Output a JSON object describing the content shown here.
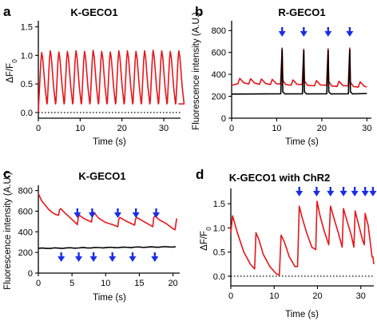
{
  "colors": {
    "red_trace": "#e8151b",
    "black_trace": "#000000",
    "arrow": "#1a2ee6"
  },
  "chart_data": [
    {
      "panel": "a",
      "type": "line",
      "title": "K-GECO1",
      "xlabel": "Time (s)",
      "ylabel_main": "ΔF/F",
      "ylabel_sub": "0",
      "xlim": [
        0,
        34
      ],
      "ylim": [
        -0.1,
        1.55
      ],
      "xticks": [
        0,
        10,
        20,
        30
      ],
      "yticks": [
        0.0,
        0.5,
        1.0,
        1.5
      ],
      "ytick_labels": [
        "0.0",
        "0.5",
        "1.0",
        "1.5"
      ],
      "dotted_baseline": 0,
      "series": [
        {
          "color": "red",
          "kind": "periodic",
          "peak_times": [
            0.8,
            2.85,
            4.9,
            6.95,
            9.0,
            11.05,
            13.1,
            15.15,
            17.2,
            19.25,
            21.3,
            23.35,
            25.4,
            27.45,
            29.5,
            31.55,
            33.6
          ],
          "peak_values": [
            1.05,
            1.08,
            1.06,
            1.07,
            1.08,
            1.07,
            1.09,
            1.07,
            1.06,
            1.08,
            1.08,
            1.07,
            1.08,
            1.09,
            1.08,
            1.07,
            1.08
          ],
          "trough": 0.15,
          "start": 0.0,
          "end": 0.15
        }
      ]
    },
    {
      "panel": "b",
      "type": "line",
      "title": "R-GECO1",
      "xlabel": "Time (s)",
      "ylabel": "Fluorescence intensity (A.U.)",
      "xlim": [
        0,
        31
      ],
      "ylim": [
        0,
        860
      ],
      "xticks": [
        0,
        10,
        20,
        30
      ],
      "yticks": [
        0,
        200,
        400,
        600,
        800
      ],
      "ytick_labels": [
        "0",
        "200",
        "400",
        "600",
        "800"
      ],
      "arrows_top_x": [
        11.2,
        16.0,
        21.4,
        26.2
      ],
      "series": [
        {
          "color": "red",
          "kind": "spiky",
          "baseline_start": 320,
          "baseline_end": 285,
          "start_value": 300,
          "small_peak_times": [
            1.8,
            4.2,
            6.6,
            9.0,
            13.6,
            18.8,
            23.8,
            28.5
          ],
          "small_peak_height": 45,
          "big_peak_times": [
            11.2,
            16.0,
            21.4,
            26.2
          ],
          "big_peak_values": [
            640,
            630,
            635,
            640
          ]
        },
        {
          "color": "black",
          "kind": "baseline",
          "start": 220,
          "end": 225,
          "dip_at": [
            11.2,
            16.0,
            21.4,
            26.2
          ],
          "big_peak_values": [
            630,
            620,
            620,
            625
          ]
        }
      ]
    },
    {
      "panel": "c",
      "type": "line",
      "title": "K-GECO1",
      "xlabel": "Time (s)",
      "ylabel": "Fluorescence intensity (A.U.)",
      "xlim": [
        0,
        21
      ],
      "ylim": [
        0,
        820
      ],
      "xticks": [
        0,
        5,
        10,
        15,
        20
      ],
      "yticks": [
        0,
        200,
        400,
        600,
        800
      ],
      "ytick_labels": [
        "0",
        "200",
        "400",
        "600",
        "800"
      ],
      "arrows_top_x": [
        5.8,
        8.0,
        11.8,
        14.5,
        17.5
      ],
      "arrows_bottom_x": [
        3.4,
        6.0,
        8.2,
        11.0,
        14.0,
        17.3
      ],
      "series": [
        {
          "color": "red",
          "kind": "decaying",
          "points": [
            [
              0,
              770
            ],
            [
              0.5,
              700
            ],
            [
              1.0,
              660
            ],
            [
              1.5,
              620
            ],
            [
              2.0,
              590
            ],
            [
              2.5,
              570
            ],
            [
              3.0,
              560
            ],
            [
              3.15,
              610
            ],
            [
              3.3,
              625
            ],
            [
              4.0,
              580
            ],
            [
              5.0,
              520
            ],
            [
              5.8,
              470
            ],
            [
              5.95,
              545
            ],
            [
              6.1,
              560
            ],
            [
              7.0,
              520
            ],
            [
              7.9,
              495
            ],
            [
              8.05,
              565
            ],
            [
              8.2,
              590
            ],
            [
              9.0,
              530
            ],
            [
              10.0,
              490
            ],
            [
              11.0,
              470
            ],
            [
              11.8,
              450
            ],
            [
              11.95,
              520
            ],
            [
              12.1,
              540
            ],
            [
              13.0,
              505
            ],
            [
              14.3,
              465
            ],
            [
              14.45,
              525
            ],
            [
              14.6,
              540
            ],
            [
              15.5,
              505
            ],
            [
              17.0,
              450
            ],
            [
              17.15,
              540
            ],
            [
              17.3,
              555
            ],
            [
              18.0,
              515
            ],
            [
              19.0,
              480
            ],
            [
              20.0,
              430
            ],
            [
              20.3,
              420
            ],
            [
              20.55,
              530
            ]
          ]
        },
        {
          "color": "black",
          "kind": "flat",
          "start": 240,
          "end": 255
        }
      ]
    },
    {
      "panel": "d",
      "type": "line",
      "title": "K-GECO1 with ChR2",
      "xlabel": "Time (s)",
      "ylabel_main": "ΔF/F",
      "ylabel_sub": "0",
      "xlim": [
        0,
        33
      ],
      "ylim": [
        -0.2,
        1.75
      ],
      "xticks": [
        0,
        10,
        20,
        30
      ],
      "yticks": [
        0.0,
        0.5,
        1.0,
        1.5
      ],
      "ytick_labels": [
        "0.0",
        "0.5",
        "1.0",
        "1.5"
      ],
      "dotted_baseline": 0,
      "arrows_top_x": [
        15.8,
        19.8,
        23.0,
        26.0,
        28.6,
        31.0,
        32.8
      ],
      "series": [
        {
          "color": "red",
          "kind": "decaying",
          "points": [
            [
              0,
              0.9
            ],
            [
              0.4,
              1.25
            ],
            [
              1.5,
              0.9
            ],
            [
              3.0,
              0.5
            ],
            [
              4.5,
              0.25
            ],
            [
              5.5,
              0.15
            ],
            [
              5.8,
              0.9
            ],
            [
              6.5,
              0.75
            ],
            [
              7.5,
              0.45
            ],
            [
              9.0,
              0.2
            ],
            [
              10.5,
              0.05
            ],
            [
              11.2,
              0.02
            ],
            [
              11.6,
              0.85
            ],
            [
              12.4,
              0.7
            ],
            [
              13.5,
              0.4
            ],
            [
              14.8,
              0.2
            ],
            [
              15.4,
              0.2
            ],
            [
              15.8,
              1.45
            ],
            [
              16.5,
              1.2
            ],
            [
              17.5,
              0.9
            ],
            [
              18.7,
              0.6
            ],
            [
              19.6,
              0.55
            ],
            [
              19.9,
              1.55
            ],
            [
              20.6,
              1.25
            ],
            [
              21.5,
              0.95
            ],
            [
              22.6,
              0.65
            ],
            [
              23.0,
              1.45
            ],
            [
              23.8,
              1.2
            ],
            [
              24.8,
              0.9
            ],
            [
              25.7,
              0.6
            ],
            [
              26.0,
              1.4
            ],
            [
              26.8,
              1.15
            ],
            [
              27.8,
              0.85
            ],
            [
              28.4,
              0.6
            ],
            [
              28.7,
              1.35
            ],
            [
              29.4,
              1.1
            ],
            [
              30.4,
              0.75
            ],
            [
              30.8,
              0.65
            ],
            [
              31.0,
              1.3
            ],
            [
              31.7,
              1.05
            ],
            [
              32.6,
              0.4
            ],
            [
              32.8,
              0.4
            ],
            [
              33.0,
              0.25
            ]
          ]
        }
      ]
    }
  ]
}
